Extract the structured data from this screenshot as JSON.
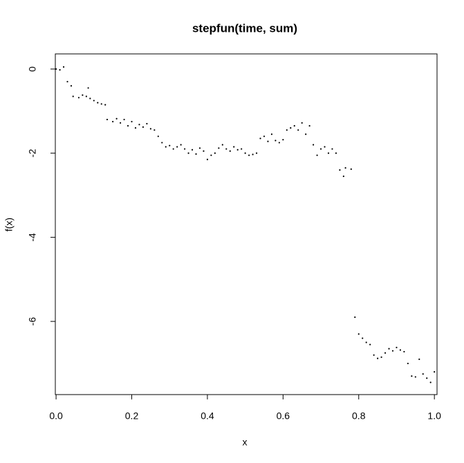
{
  "chart_data": {
    "type": "scatter",
    "title": "stepfun(time, sum)",
    "x_label": "x",
    "y_label": "f(x)",
    "x": [
      0,
      0.01,
      0.02,
      0.03,
      0.04,
      0.045,
      0.06,
      0.07,
      0.08,
      0.085,
      0.09,
      0.1,
      0.11,
      0.12,
      0.13,
      0.135,
      0.15,
      0.16,
      0.17,
      0.18,
      0.19,
      0.2,
      0.21,
      0.22,
      0.23,
      0.24,
      0.25,
      0.26,
      0.27,
      0.28,
      0.29,
      0.3,
      0.31,
      0.32,
      0.33,
      0.34,
      0.35,
      0.36,
      0.37,
      0.38,
      0.39,
      0.4,
      0.41,
      0.42,
      0.43,
      0.44,
      0.45,
      0.46,
      0.47,
      0.48,
      0.49,
      0.5,
      0.51,
      0.52,
      0.53,
      0.54,
      0.55,
      0.56,
      0.57,
      0.58,
      0.59,
      0.6,
      0.61,
      0.62,
      0.63,
      0.64,
      0.65,
      0.66,
      0.67,
      0.68,
      0.69,
      0.7,
      0.71,
      0.72,
      0.73,
      0.74,
      0.75,
      0.76,
      0.765,
      0.78,
      0.79,
      0.8,
      0.81,
      0.82,
      0.83,
      0.84,
      0.85,
      0.86,
      0.87,
      0.88,
      0.89,
      0.9,
      0.91,
      0.92,
      0.93,
      0.94,
      0.95,
      0.96,
      0.97,
      0.98,
      0.99,
      1.0
    ],
    "values": [
      0,
      -0.02,
      0.05,
      -0.3,
      -0.4,
      -0.65,
      -0.68,
      -0.62,
      -0.65,
      -0.45,
      -0.7,
      -0.75,
      -0.8,
      -0.83,
      -0.85,
      -1.2,
      -1.25,
      -1.18,
      -1.28,
      -1.2,
      -1.35,
      -1.25,
      -1.4,
      -1.32,
      -1.38,
      -1.3,
      -1.42,
      -1.45,
      -1.6,
      -1.75,
      -1.85,
      -1.82,
      -1.9,
      -1.85,
      -1.8,
      -1.9,
      -2.0,
      -1.92,
      -2.02,
      -1.88,
      -1.95,
      -2.15,
      -2.05,
      -2.0,
      -1.88,
      -1.8,
      -1.9,
      -1.95,
      -1.85,
      -1.92,
      -1.9,
      -2.0,
      -2.05,
      -2.03,
      -2.0,
      -1.65,
      -1.6,
      -1.72,
      -1.55,
      -1.7,
      -1.75,
      -1.68,
      -1.45,
      -1.4,
      -1.35,
      -1.45,
      -1.28,
      -1.55,
      -1.35,
      -1.8,
      -2.05,
      -1.9,
      -1.85,
      -2.0,
      -1.9,
      -2.0,
      -2.4,
      -2.55,
      -2.35,
      -2.38,
      -5.9,
      -6.3,
      -6.4,
      -6.5,
      -6.55,
      -6.8,
      -6.88,
      -6.85,
      -6.75,
      -6.65,
      -6.7,
      -6.62,
      -6.68,
      -6.72,
      -7.0,
      -7.3,
      -7.32,
      -6.9,
      -7.25,
      -7.35,
      -7.45,
      -7.2
    ],
    "color": "#000000",
    "xlim": [
      -0.002,
      1.007
    ],
    "ylim": [
      -7.74,
      0.36
    ],
    "xticks": [
      {
        "value": 0,
        "label": "0.0"
      },
      0.2,
      0.4,
      0.6,
      0.8,
      {
        "value": 1,
        "label": "1.0"
      }
    ],
    "yticks": [
      0,
      -2,
      -4,
      -6
    ]
  }
}
